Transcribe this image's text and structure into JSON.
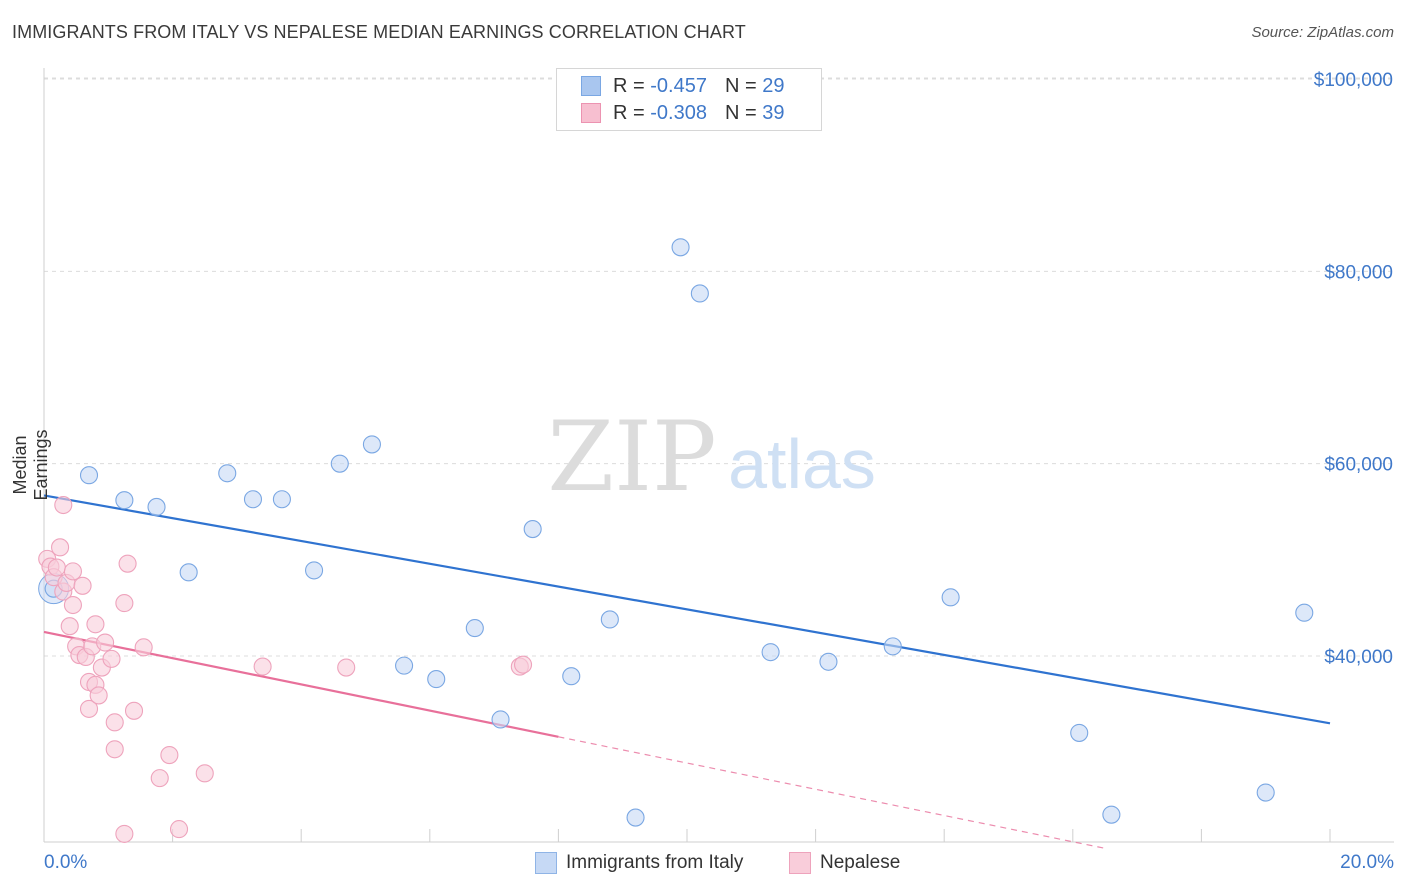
{
  "title": "IMMIGRANTS FROM ITALY VS NEPALESE MEDIAN EARNINGS CORRELATION CHART",
  "source": "Source: ZipAtlas.com",
  "watermark": {
    "zip": "ZIP",
    "atlas": "atlas"
  },
  "legend_top": [
    {
      "r_label": "R = ",
      "r_value": "-0.457",
      "n_label": "N = ",
      "n_value": "29",
      "color": "#a9c6ef",
      "border": "#7aa7e3"
    },
    {
      "r_label": "R = ",
      "r_value": "-0.308",
      "n_label": "N = ",
      "n_value": "39",
      "color": "#f7bfd0",
      "border": "#ec93b1"
    }
  ],
  "legend_bottom": [
    {
      "label": "Immigrants from Italy",
      "color": "#c6d9f5",
      "border": "#8fb4e6"
    },
    {
      "label": "Nepalese",
      "color": "#f9cdda",
      "border": "#eea3bc"
    }
  ],
  "x_axis": {
    "min_label": "0.0%",
    "max_label": "20.0%"
  },
  "chart_data": {
    "type": "scatter",
    "title": "IMMIGRANTS FROM ITALY VS NEPALESE MEDIAN EARNINGS CORRELATION CHART",
    "xlabel": "",
    "ylabel": "Median Earnings",
    "xlim": [
      0,
      20
    ],
    "ylim": [
      20000,
      103000
    ],
    "y_ticks": [
      {
        "value": 40000,
        "label": "$40,000"
      },
      {
        "value": 60000,
        "label": "$60,000"
      },
      {
        "value": 80000,
        "label": "$80,000"
      },
      {
        "value": 100000,
        "label": "$100,000"
      }
    ],
    "grid": "horizontal dashed",
    "legend_position": "top-center",
    "series": [
      {
        "name": "Immigrants from Italy",
        "color": "#7aa7e3",
        "fill": "#c6d9f5",
        "trend_color": "#2f73d0",
        "points": [
          [
            0.15,
            47000
          ],
          [
            0.7,
            58800
          ],
          [
            1.25,
            56200
          ],
          [
            1.75,
            55500
          ],
          [
            2.25,
            48700
          ],
          [
            2.85,
            59000
          ],
          [
            3.25,
            56300
          ],
          [
            3.7,
            56300
          ],
          [
            4.2,
            48900
          ],
          [
            4.6,
            60000
          ],
          [
            5.1,
            62000
          ],
          [
            5.6,
            39000
          ],
          [
            6.1,
            37600
          ],
          [
            6.7,
            42900
          ],
          [
            7.1,
            33400
          ],
          [
            7.6,
            53200
          ],
          [
            8.2,
            37900
          ],
          [
            8.8,
            43800
          ],
          [
            9.2,
            23200
          ],
          [
            9.9,
            82500
          ],
          [
            10.2,
            77700
          ],
          [
            11.3,
            40400
          ],
          [
            12.2,
            39400
          ],
          [
            13.2,
            41000
          ],
          [
            14.1,
            46100
          ],
          [
            16.1,
            32000
          ],
          [
            16.6,
            23500
          ],
          [
            19.0,
            25800
          ],
          [
            19.6,
            44500
          ]
        ],
        "trend": {
          "x": [
            0,
            20
          ],
          "y": [
            56700,
            33000
          ]
        }
      },
      {
        "name": "Nepalese",
        "color": "#eea3bc",
        "fill": "#f9cdda",
        "trend_color": "#e8709a",
        "points": [
          [
            0.05,
            50100
          ],
          [
            0.1,
            49300
          ],
          [
            0.15,
            48200
          ],
          [
            0.2,
            49200
          ],
          [
            0.25,
            51300
          ],
          [
            0.3,
            46700
          ],
          [
            0.3,
            55700
          ],
          [
            0.35,
            47600
          ],
          [
            0.4,
            43100
          ],
          [
            0.45,
            48800
          ],
          [
            0.45,
            45300
          ],
          [
            0.5,
            41000
          ],
          [
            0.55,
            40100
          ],
          [
            0.6,
            47300
          ],
          [
            0.65,
            39900
          ],
          [
            0.7,
            34500
          ],
          [
            0.7,
            37300
          ],
          [
            0.75,
            41000
          ],
          [
            0.8,
            37000
          ],
          [
            0.8,
            43300
          ],
          [
            0.85,
            35900
          ],
          [
            0.9,
            38800
          ],
          [
            0.95,
            41400
          ],
          [
            1.05,
            39700
          ],
          [
            1.1,
            30300
          ],
          [
            1.1,
            33100
          ],
          [
            1.25,
            45500
          ],
          [
            1.3,
            49600
          ],
          [
            1.4,
            34300
          ],
          [
            1.55,
            40900
          ],
          [
            1.8,
            27300
          ],
          [
            1.95,
            29700
          ],
          [
            2.1,
            22000
          ],
          [
            2.5,
            27800
          ],
          [
            1.25,
            21500
          ],
          [
            3.4,
            38900
          ],
          [
            4.7,
            38800
          ],
          [
            7.4,
            38900
          ],
          [
            7.45,
            39100
          ]
        ],
        "trend": {
          "x": [
            0,
            8
          ],
          "y": [
            42500,
            31600
          ]
        },
        "trend_dashed": {
          "x": [
            8,
            16.5
          ],
          "y": [
            31600,
            20000
          ]
        }
      }
    ]
  }
}
